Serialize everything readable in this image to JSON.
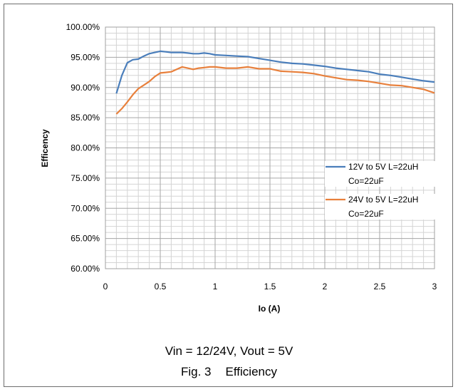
{
  "chart_data": {
    "type": "line",
    "xlabel": "Io (A)",
    "ylabel": "Efficency",
    "xlim": [
      0,
      3
    ],
    "ylim": [
      0.6,
      1.0
    ],
    "x_ticks": [
      "0",
      "0.5",
      "1",
      "1.5",
      "2",
      "2.5",
      "3"
    ],
    "y_ticks": [
      "60.00%",
      "65.00%",
      "70.00%",
      "75.00%",
      "80.00%",
      "85.00%",
      "90.00%",
      "95.00%",
      "100.00%"
    ],
    "grid": true,
    "legend_position": "right",
    "series": [
      {
        "name_line1": "12V to 5V L=22uH",
        "name_line2": "Co=22uF",
        "color": "#4a7ebb",
        "x": [
          0.1,
          0.15,
          0.2,
          0.25,
          0.3,
          0.35,
          0.4,
          0.45,
          0.5,
          0.55,
          0.6,
          0.65,
          0.7,
          0.75,
          0.8,
          0.85,
          0.9,
          0.95,
          1.0,
          1.1,
          1.2,
          1.3,
          1.4,
          1.5,
          1.6,
          1.7,
          1.8,
          1.9,
          2.0,
          2.1,
          2.2,
          2.3,
          2.4,
          2.5,
          2.6,
          2.7,
          2.8,
          2.9,
          3.0
        ],
        "y": [
          0.89,
          0.92,
          0.941,
          0.946,
          0.947,
          0.952,
          0.956,
          0.958,
          0.96,
          0.959,
          0.958,
          0.958,
          0.958,
          0.957,
          0.956,
          0.956,
          0.957,
          0.956,
          0.954,
          0.953,
          0.952,
          0.951,
          0.948,
          0.945,
          0.942,
          0.94,
          0.939,
          0.937,
          0.935,
          0.932,
          0.93,
          0.928,
          0.926,
          0.922,
          0.92,
          0.917,
          0.914,
          0.911,
          0.909
        ]
      },
      {
        "name_line1": "24V to 5V L=22uH",
        "name_line2": "Co=22uF",
        "color": "#e8803c",
        "x": [
          0.1,
          0.15,
          0.2,
          0.25,
          0.3,
          0.35,
          0.4,
          0.45,
          0.5,
          0.55,
          0.6,
          0.65,
          0.7,
          0.75,
          0.8,
          0.85,
          0.9,
          0.95,
          1.0,
          1.1,
          1.2,
          1.3,
          1.4,
          1.5,
          1.6,
          1.7,
          1.8,
          1.9,
          2.0,
          2.1,
          2.2,
          2.3,
          2.4,
          2.5,
          2.6,
          2.7,
          2.8,
          2.9,
          3.0
        ],
        "y": [
          0.856,
          0.865,
          0.876,
          0.888,
          0.898,
          0.904,
          0.91,
          0.918,
          0.924,
          0.925,
          0.926,
          0.93,
          0.934,
          0.932,
          0.93,
          0.932,
          0.933,
          0.934,
          0.934,
          0.932,
          0.932,
          0.934,
          0.931,
          0.931,
          0.927,
          0.926,
          0.925,
          0.923,
          0.919,
          0.916,
          0.913,
          0.912,
          0.91,
          0.907,
          0.904,
          0.903,
          0.9,
          0.897,
          0.891
        ]
      }
    ]
  },
  "captions": {
    "subtitle": "Vin = 12/24V, Vout = 5V",
    "fig_label": "Fig. 3",
    "fig_title": "Efficiency"
  }
}
